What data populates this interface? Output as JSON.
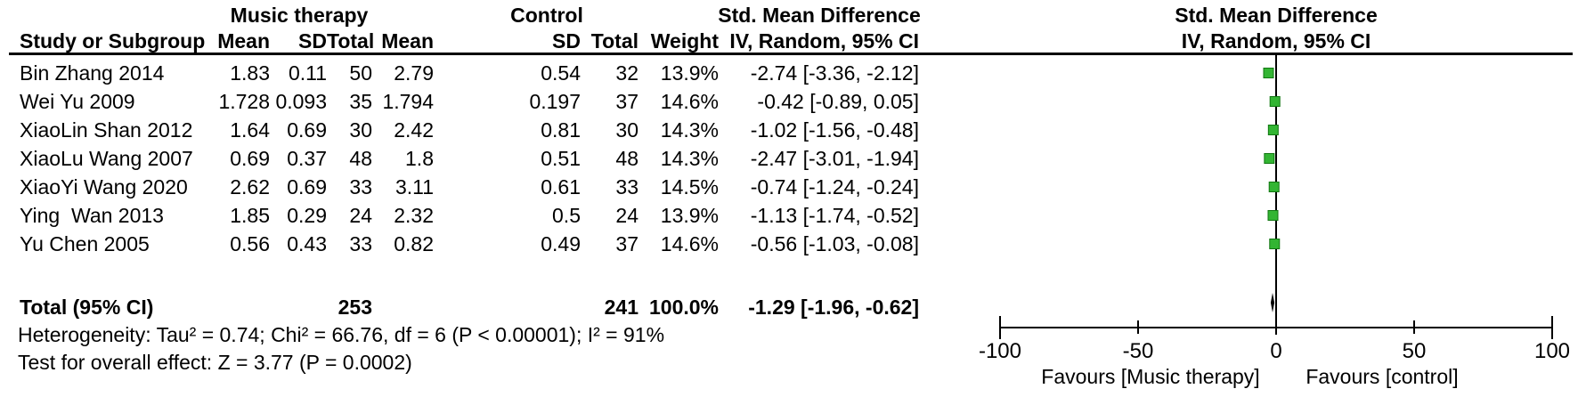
{
  "table": {
    "group_headers": {
      "music": "Music therapy",
      "control": "Control",
      "smd_left_line1": "Std. Mean Difference",
      "smd_right_line1": "Std. Mean Difference",
      "smd_right_line2": "IV, Random, 95% CI"
    },
    "columns": [
      "Study or Subgroup",
      "Mean",
      "SD",
      "Total",
      "Mean",
      "SD",
      "Total",
      "Weight",
      "IV, Random, 95% CI"
    ],
    "rows": [
      {
        "study": "Bin Zhang 2014",
        "mean1": "1.83",
        "sd1": "0.11",
        "total1": "50",
        "mean2": "2.79",
        "sd2": "0.54",
        "total2": "32",
        "weight": "13.9%",
        "ci": "-2.74 [-3.36, -2.12]"
      },
      {
        "study": "Wei Yu 2009",
        "mean1": "1.728",
        "sd1": "0.093",
        "total1": "35",
        "mean2": "1.794",
        "sd2": "0.197",
        "total2": "37",
        "weight": "14.6%",
        "ci": "-0.42 [-0.89, 0.05]"
      },
      {
        "study": "XiaoLin Shan 2012",
        "mean1": "1.64",
        "sd1": "0.69",
        "total1": "30",
        "mean2": "2.42",
        "sd2": "0.81",
        "total2": "30",
        "weight": "14.3%",
        "ci": "-1.02 [-1.56, -0.48]"
      },
      {
        "study": "XiaoLu Wang 2007",
        "mean1": "0.69",
        "sd1": "0.37",
        "total1": "48",
        "mean2": "1.8",
        "sd2": "0.51",
        "total2": "48",
        "weight": "14.3%",
        "ci": "-2.47 [-3.01, -1.94]"
      },
      {
        "study": "XiaoYi Wang 2020",
        "mean1": "2.62",
        "sd1": "0.69",
        "total1": "33",
        "mean2": "3.11",
        "sd2": "0.61",
        "total2": "33",
        "weight": "14.5%",
        "ci": "-0.74 [-1.24, -0.24]"
      },
      {
        "study": "Ying  Wan 2013",
        "mean1": "1.85",
        "sd1": "0.29",
        "total1": "24",
        "mean2": "2.32",
        "sd2": "0.5",
        "total2": "24",
        "weight": "13.9%",
        "ci": "-1.13 [-1.74, -0.52]"
      },
      {
        "study": "Yu Chen 2005",
        "mean1": "0.56",
        "sd1": "0.43",
        "total1": "33",
        "mean2": "0.82",
        "sd2": "0.49",
        "total2": "37",
        "weight": "14.6%",
        "ci": "-0.56 [-1.03, -0.08]"
      }
    ],
    "total_row": {
      "label": "Total (95% CI)",
      "total1": "253",
      "total2": "241",
      "weight": "100.0%",
      "ci": "-1.29 [-1.96, -0.62]"
    },
    "heterogeneity": "Heterogeneity: Tau² = 0.74; Chi² = 66.76, df = 6 (P < 0.00001); I² = 91%",
    "overall_effect": "Test for overall effect: Z = 3.77 (P = 0.0002)"
  },
  "chart_data": {
    "type": "forest",
    "title": "Std. Mean Difference",
    "subtitle": "IV, Random, 95% CI",
    "axis": {
      "min": -100,
      "max": 100,
      "ticks": [
        -100,
        -50,
        0,
        50,
        100
      ]
    },
    "tick_labels": [
      "-100",
      "-50",
      "0",
      "50",
      "100"
    ],
    "xlabel_left": "Favours [Music therapy]",
    "xlabel_right": "Favours [control]",
    "studies": [
      {
        "name": "Bin Zhang 2014",
        "smd": -2.74,
        "ci_low": -3.36,
        "ci_high": -2.12,
        "weight": 13.9
      },
      {
        "name": "Wei Yu 2009",
        "smd": -0.42,
        "ci_low": -0.89,
        "ci_high": 0.05,
        "weight": 14.6
      },
      {
        "name": "XiaoLin Shan 2012",
        "smd": -1.02,
        "ci_low": -1.56,
        "ci_high": -0.48,
        "weight": 14.3
      },
      {
        "name": "XiaoLu Wang 2007",
        "smd": -2.47,
        "ci_low": -3.01,
        "ci_high": -1.94,
        "weight": 14.3
      },
      {
        "name": "XiaoYi Wang 2020",
        "smd": -0.74,
        "ci_low": -1.24,
        "ci_high": -0.24,
        "weight": 14.5
      },
      {
        "name": "Ying  Wan 2013",
        "smd": -1.13,
        "ci_low": -1.74,
        "ci_high": -0.52,
        "weight": 13.9
      },
      {
        "name": "Yu Chen 2005",
        "smd": -0.56,
        "ci_low": -1.03,
        "ci_high": -0.08,
        "weight": 14.6
      }
    ],
    "total": {
      "smd": -1.29,
      "ci_low": -1.96,
      "ci_high": -0.62
    },
    "colors": {
      "marker_fill": "#33b533",
      "marker_border": "#117711",
      "line": "#000000",
      "text": "#000000",
      "background": "#ffffff"
    }
  }
}
